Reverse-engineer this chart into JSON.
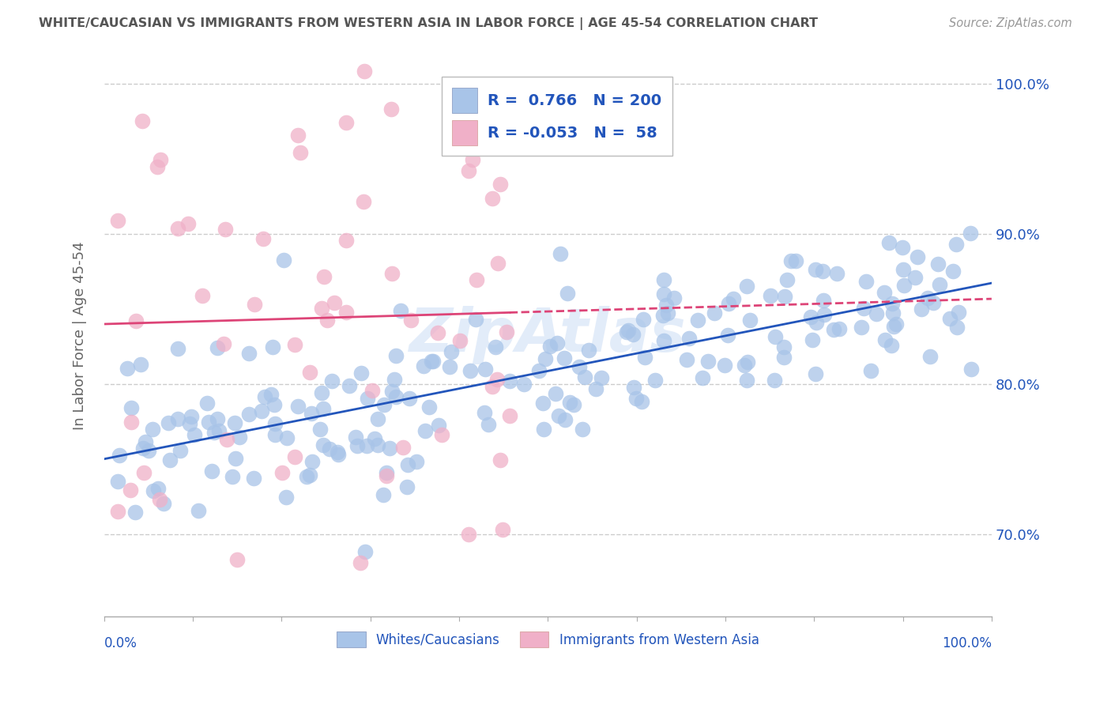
{
  "title": "WHITE/CAUCASIAN VS IMMIGRANTS FROM WESTERN ASIA IN LABOR FORCE | AGE 45-54 CORRELATION CHART",
  "source": "Source: ZipAtlas.com",
  "ylabel": "In Labor Force | Age 45-54",
  "watermark": "ZipAtlas",
  "blue_R": 0.766,
  "blue_N": 200,
  "pink_R": -0.053,
  "pink_N": 58,
  "blue_color": "#a8c4e8",
  "pink_color": "#f0b0c8",
  "blue_line_color": "#2255bb",
  "pink_line_color": "#dd4477",
  "xlim": [
    0.0,
    1.0
  ],
  "ylim": [
    0.645,
    1.02
  ],
  "yticks": [
    0.7,
    0.8,
    0.9,
    1.0
  ],
  "ytick_labels": [
    "70.0%",
    "80.0%",
    "90.0%",
    "100.0%"
  ],
  "grid_color": "#cccccc",
  "background_color": "#ffffff",
  "title_color": "#555555",
  "legend_text_color": "#2255bb",
  "seed": 42
}
